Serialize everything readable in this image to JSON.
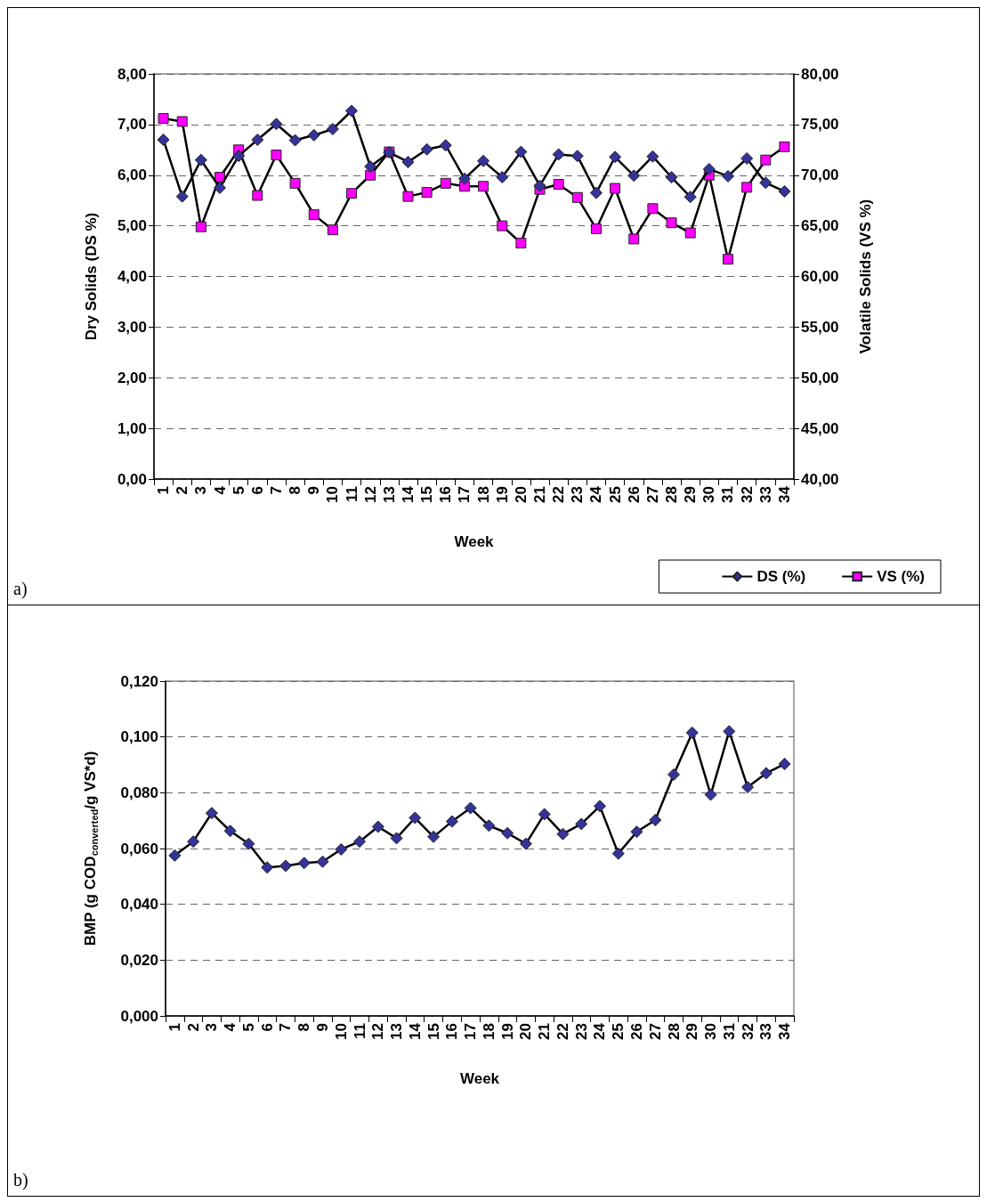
{
  "chart_data": [
    {
      "type": "line",
      "xlabel": "Week",
      "ylabel": "Dry Solids (DS %)",
      "y2label": "Volatile Solids (VS %)",
      "annotations": [
        "a)"
      ],
      "categories": [
        "1",
        "2",
        "3",
        "4",
        "5",
        "6",
        "7",
        "8",
        "9",
        "10",
        "11",
        "12",
        "13",
        "14",
        "15",
        "16",
        "17",
        "18",
        "19",
        "20",
        "21",
        "22",
        "23",
        "24",
        "25",
        "26",
        "27",
        "28",
        "29",
        "30",
        "31",
        "32",
        "33",
        "34"
      ],
      "series": [
        {
          "name": "DS (%)",
          "color": "#333399",
          "marker": "diamond",
          "values": [
            6.7,
            5.58,
            6.3,
            5.75,
            6.38,
            6.7,
            7.01,
            6.69,
            6.79,
            6.91,
            7.27,
            6.17,
            6.45,
            6.26,
            6.51,
            6.59,
            5.93,
            6.28,
            5.96,
            6.46,
            5.79,
            6.41,
            6.38,
            5.65,
            6.36,
            5.99,
            6.37,
            5.96,
            5.57,
            6.12,
            5.98,
            6.33,
            5.85,
            5.68
          ]
        },
        {
          "name": "VS (%)",
          "color": "#ff00ff",
          "marker": "square",
          "axis": "y2",
          "values": [
            75.6,
            75.3,
            64.9,
            69.8,
            72.5,
            68.0,
            72.0,
            69.2,
            66.1,
            64.6,
            68.2,
            70.0,
            72.3,
            67.9,
            68.3,
            69.2,
            68.9,
            68.9,
            65.0,
            63.3,
            68.6,
            69.1,
            67.8,
            64.7,
            68.7,
            63.7,
            66.7,
            65.3,
            64.3,
            70.0,
            61.7,
            68.8,
            71.5,
            72.8
          ]
        }
      ],
      "ylim": [
        0,
        8
      ],
      "yticks": [
        {
          "value": 0,
          "label": "0,00"
        },
        {
          "value": 1,
          "label": "1,00"
        },
        {
          "value": 2,
          "label": "2,00"
        },
        {
          "value": 3,
          "label": "3,00"
        },
        {
          "value": 4,
          "label": "4,00"
        },
        {
          "value": 5,
          "label": "5,00"
        },
        {
          "value": 6,
          "label": "6,00"
        },
        {
          "value": 7,
          "label": "7,00"
        },
        {
          "value": 8,
          "label": "8,00"
        }
      ],
      "y2lim": [
        40,
        80
      ],
      "y2ticks": [
        {
          "value": 40,
          "label": "40,00"
        },
        {
          "value": 45,
          "label": "45,00"
        },
        {
          "value": 50,
          "label": "50,00"
        },
        {
          "value": 55,
          "label": "55,00"
        },
        {
          "value": 60,
          "label": "60,00"
        },
        {
          "value": 65,
          "label": "65,00"
        },
        {
          "value": 70,
          "label": "70,00"
        },
        {
          "value": 75,
          "label": "75,00"
        },
        {
          "value": 80,
          "label": "80,00"
        }
      ],
      "grid": "y",
      "legend": "bottom right"
    },
    {
      "type": "line",
      "xlabel": "Week",
      "ylabel": "BMP (g COD$_{converted}$/g VS*d)",
      "annotations": [
        "b)"
      ],
      "categories": [
        "1",
        "2",
        "3",
        "4",
        "5",
        "6",
        "7",
        "8",
        "9",
        "10",
        "11",
        "12",
        "13",
        "14",
        "15",
        "16",
        "17",
        "18",
        "19",
        "20",
        "21",
        "22",
        "23",
        "24",
        "25",
        "26",
        "27",
        "28",
        "29",
        "30",
        "31",
        "32",
        "33",
        "34"
      ],
      "series": [
        {
          "color": "#333399",
          "marker": "diamond",
          "values": [
            0.0575,
            0.0625,
            0.0727,
            0.0663,
            0.0617,
            0.0532,
            0.0538,
            0.0548,
            0.0553,
            0.0597,
            0.0625,
            0.0678,
            0.0637,
            0.071,
            0.0642,
            0.0697,
            0.0745,
            0.0682,
            0.0655,
            0.0617,
            0.0723,
            0.0652,
            0.0688,
            0.0752,
            0.0582,
            0.066,
            0.0702,
            0.0865,
            0.1015,
            0.0793,
            0.102,
            0.082,
            0.087,
            0.0903
          ]
        }
      ],
      "ylim": [
        0,
        0.12
      ],
      "yticks": [
        {
          "value": 0,
          "label": "0,000"
        },
        {
          "value": 0.02,
          "label": "0,020"
        },
        {
          "value": 0.04,
          "label": "0,040"
        },
        {
          "value": 0.06,
          "label": "0,060"
        },
        {
          "value": 0.08,
          "label": "0,080"
        },
        {
          "value": 0.1,
          "label": "0,100"
        },
        {
          "value": 0.12,
          "label": "0,120"
        }
      ],
      "grid": "y",
      "legend": false
    }
  ]
}
